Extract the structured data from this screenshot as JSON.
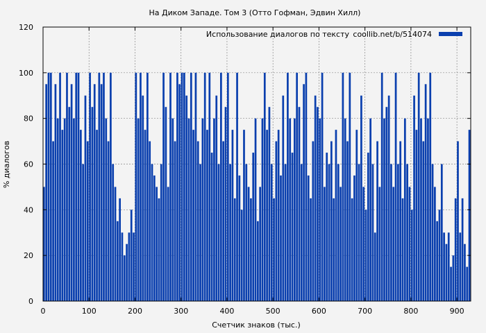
{
  "chart_data": {
    "type": "bar",
    "title": "На Диком Западе. Том 3 (Отто Гофман, Эдвин Хилл)",
    "xlabel": "Счетчик знаков (тыс.)",
    "ylabel": "% диалогов",
    "xlim": [
      0,
      930
    ],
    "ylim": [
      0,
      120
    ],
    "x_ticks": [
      0,
      100,
      200,
      300,
      400,
      500,
      600,
      700,
      800,
      900
    ],
    "y_ticks": [
      0,
      20,
      40,
      60,
      80,
      100,
      120
    ],
    "grid": true,
    "legend": "top-right",
    "series": [
      {
        "name": "Использование диалогов по тексту",
        "source_label": "coollib.net/b/514074",
        "color": "#0a3fae",
        "bin_width": 5,
        "x": [
          0,
          5,
          10,
          15,
          20,
          25,
          30,
          35,
          40,
          45,
          50,
          55,
          60,
          65,
          70,
          75,
          80,
          85,
          90,
          95,
          100,
          105,
          110,
          115,
          120,
          125,
          130,
          135,
          140,
          145,
          150,
          155,
          160,
          165,
          170,
          175,
          180,
          185,
          190,
          195,
          200,
          205,
          210,
          215,
          220,
          225,
          230,
          235,
          240,
          245,
          250,
          255,
          260,
          265,
          270,
          275,
          280,
          285,
          290,
          295,
          300,
          305,
          310,
          315,
          320,
          325,
          330,
          335,
          340,
          345,
          350,
          355,
          360,
          365,
          370,
          375,
          380,
          385,
          390,
          395,
          400,
          405,
          410,
          415,
          420,
          425,
          430,
          435,
          440,
          445,
          450,
          455,
          460,
          465,
          470,
          475,
          480,
          485,
          490,
          495,
          500,
          505,
          510,
          515,
          520,
          525,
          530,
          535,
          540,
          545,
          550,
          555,
          560,
          565,
          570,
          575,
          580,
          585,
          590,
          595,
          600,
          605,
          610,
          615,
          620,
          625,
          630,
          635,
          640,
          645,
          650,
          655,
          660,
          665,
          670,
          675,
          680,
          685,
          690,
          695,
          700,
          705,
          710,
          715,
          720,
          725,
          730,
          735,
          740,
          745,
          750,
          755,
          760,
          765,
          770,
          775,
          780,
          785,
          790,
          795,
          800,
          805,
          810,
          815,
          820,
          825,
          830,
          835,
          840,
          845,
          850,
          855,
          860,
          865,
          870,
          875,
          880,
          885,
          890,
          895,
          900,
          905,
          910,
          915,
          920,
          925
        ],
        "values": [
          50,
          95,
          100,
          100,
          70,
          95,
          80,
          100,
          75,
          80,
          100,
          85,
          95,
          80,
          100,
          100,
          75,
          60,
          90,
          70,
          100,
          85,
          95,
          75,
          100,
          95,
          100,
          80,
          70,
          100,
          60,
          50,
          35,
          45,
          30,
          20,
          25,
          30,
          40,
          30,
          100,
          80,
          100,
          90,
          75,
          100,
          70,
          60,
          55,
          50,
          45,
          60,
          100,
          85,
          50,
          100,
          80,
          70,
          100,
          95,
          100,
          100,
          90,
          80,
          100,
          75,
          100,
          70,
          60,
          80,
          100,
          75,
          100,
          65,
          80,
          90,
          60,
          100,
          70,
          85,
          100,
          60,
          75,
          45,
          100,
          55,
          40,
          75,
          60,
          50,
          45,
          65,
          80,
          35,
          50,
          80,
          100,
          75,
          85,
          60,
          45,
          70,
          75,
          55,
          90,
          60,
          100,
          80,
          65,
          80,
          100,
          85,
          60,
          95,
          100,
          55,
          45,
          70,
          90,
          85,
          80,
          100,
          50,
          65,
          60,
          70,
          45,
          75,
          60,
          50,
          100,
          80,
          70,
          100,
          45,
          55,
          75,
          60,
          90,
          50,
          40,
          65,
          80,
          60,
          30,
          70,
          50,
          100,
          80,
          85,
          90,
          60,
          50,
          100,
          60,
          70,
          45,
          80,
          60,
          50,
          40,
          90,
          75,
          100,
          80,
          70,
          95,
          80,
          100,
          60,
          50,
          35,
          40,
          60,
          30,
          25,
          30,
          15,
          20,
          45,
          70,
          30,
          45,
          25,
          15,
          75
        ]
      }
    ]
  }
}
